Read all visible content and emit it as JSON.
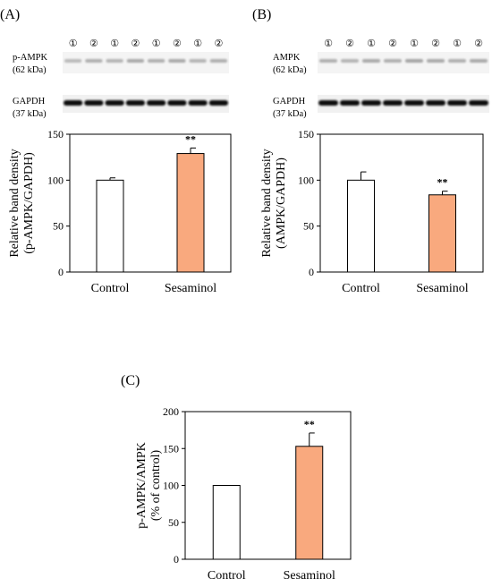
{
  "panels": {
    "A": {
      "label": "(A)",
      "blot_top_label": [
        "p-AMPK",
        "(62 kDa)"
      ],
      "blot_bottom_label": [
        "GAPDH",
        "(37 kDa)"
      ]
    },
    "B": {
      "label": "(B)",
      "blot_top_label": [
        "AMPK",
        "(62 kDa)"
      ],
      "blot_bottom_label": [
        "GAPDH",
        "(37 kDa)"
      ]
    },
    "C": {
      "label": "(C)"
    }
  },
  "lane_numbers": [
    "①",
    "②",
    "①",
    "②",
    "①",
    "②",
    "①",
    "②"
  ],
  "colors": {
    "control": "#ffffff",
    "sesaminol": "#f9a97e",
    "axis": "#000000"
  },
  "chart_data": [
    {
      "type": "bar",
      "panel": "A",
      "categories": [
        "Control",
        "Sesaminol"
      ],
      "values": [
        100,
        129
      ],
      "errors": [
        2.5,
        6
      ],
      "significance": [
        "",
        "**"
      ],
      "ylabel": [
        "Relative band density",
        "(p-AMPK/GAPDH)"
      ],
      "ylim": [
        0,
        150
      ],
      "yticks": [
        0,
        50,
        100,
        150
      ]
    },
    {
      "type": "bar",
      "panel": "B",
      "categories": [
        "Control",
        "Sesaminol"
      ],
      "values": [
        100,
        84
      ],
      "errors": [
        9,
        4
      ],
      "significance": [
        "",
        "**"
      ],
      "ylabel": [
        "Relative band density",
        "(AMPK/GAPDH)"
      ],
      "ylim": [
        0,
        150
      ],
      "yticks": [
        0,
        50,
        100,
        150
      ]
    },
    {
      "type": "bar",
      "panel": "C",
      "categories": [
        "Control",
        "Sesaminol"
      ],
      "values": [
        100,
        153
      ],
      "errors": [
        0,
        18
      ],
      "significance": [
        "",
        "**"
      ],
      "ylabel": [
        "p-AMPK/AMPK",
        "(% of control)"
      ],
      "ylim": [
        0,
        200
      ],
      "yticks": [
        0,
        50,
        100,
        150,
        200
      ]
    }
  ]
}
